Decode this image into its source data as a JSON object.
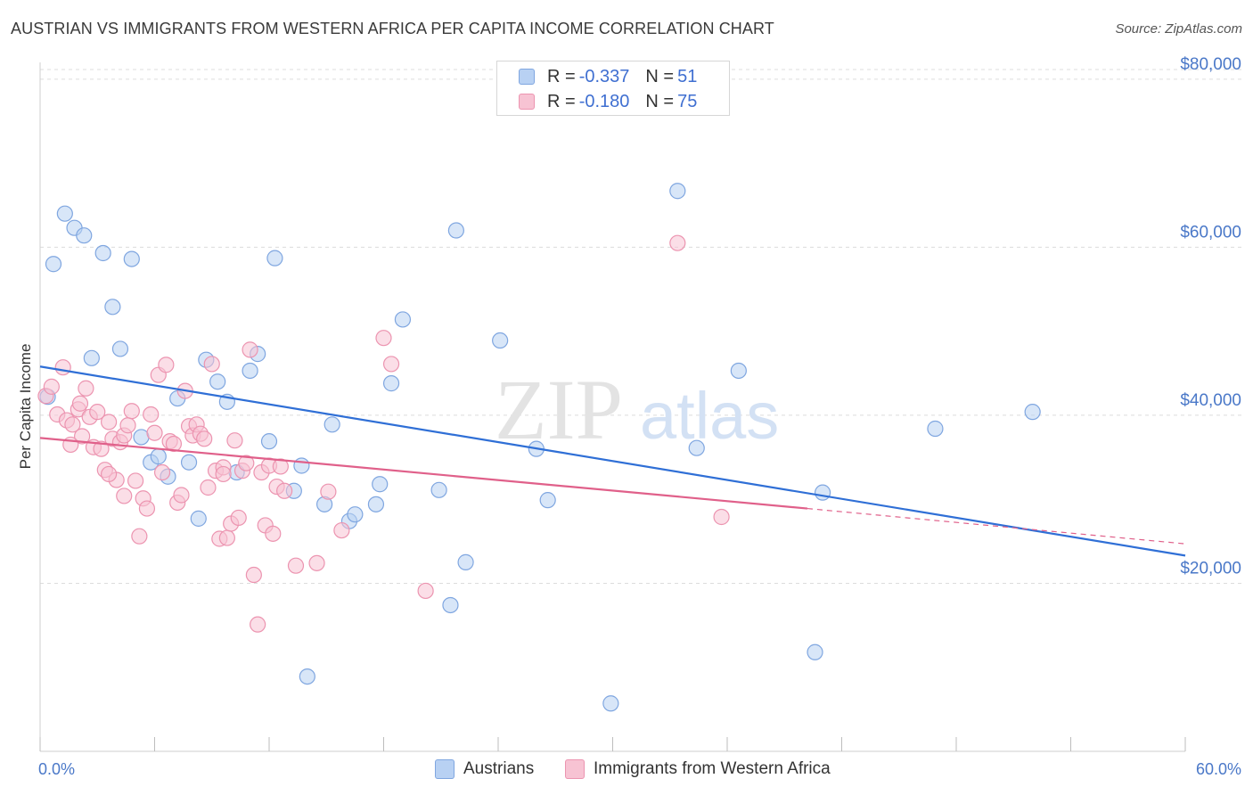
{
  "title": "AUSTRIAN VS IMMIGRANTS FROM WESTERN AFRICA PER CAPITA INCOME CORRELATION CHART",
  "source": "Source: ZipAtlas.com",
  "watermark": {
    "zip": "ZIP",
    "atlas": "atlas"
  },
  "legend_top": [
    {
      "r_label": "R =",
      "r_value": "-0.337",
      "n_label": "N =",
      "n_value": "51"
    },
    {
      "r_label": "R =",
      "r_value": "-0.180",
      "n_label": "N =",
      "n_value": "75"
    }
  ],
  "legend_bottom": [
    {
      "label": "Austrians"
    },
    {
      "label": "Immigrants from Western Africa"
    }
  ],
  "colors": {
    "blue_fill": "#b8d1f3",
    "blue_stroke": "#7fa6e0",
    "blue_line": "#2f6fd6",
    "pink_fill": "#f7c3d3",
    "pink_stroke": "#ec94b0",
    "pink_line": "#e0608a",
    "accent_text": "#4a78c8",
    "grid": "#dcdcdc"
  },
  "chart_data": {
    "type": "scatter",
    "ylabel": "Per Capita Income",
    "xlim": [
      0,
      60
    ],
    "ylim": [
      0,
      82000
    ],
    "x_tick_labels": [
      "0.0%",
      "60.0%"
    ],
    "y_ticks": [
      20000,
      40000,
      60000,
      80000
    ],
    "y_tick_labels": [
      "$20,000",
      "$40,000",
      "$60,000",
      "$80,000"
    ],
    "grid": "horizontal dashed",
    "series": [
      {
        "name": "Austrians",
        "color": "#b8d1f3",
        "trend": {
          "x": [
            0,
            60
          ],
          "y": [
            45800,
            23300
          ]
        },
        "points": [
          [
            0.4,
            42200
          ],
          [
            0.7,
            58000
          ],
          [
            1.3,
            64000
          ],
          [
            1.8,
            62300
          ],
          [
            2.3,
            61400
          ],
          [
            2.7,
            46800
          ],
          [
            3.3,
            59300
          ],
          [
            3.8,
            52900
          ],
          [
            4.2,
            47900
          ],
          [
            4.8,
            58600
          ],
          [
            5.3,
            37400
          ],
          [
            5.8,
            34400
          ],
          [
            6.2,
            35100
          ],
          [
            6.7,
            32700
          ],
          [
            7.2,
            42000
          ],
          [
            7.8,
            34400
          ],
          [
            8.3,
            27700
          ],
          [
            8.7,
            46600
          ],
          [
            9.3,
            44000
          ],
          [
            9.8,
            41600
          ],
          [
            10.3,
            33200
          ],
          [
            11.0,
            45300
          ],
          [
            11.4,
            47300
          ],
          [
            12.0,
            36900
          ],
          [
            12.3,
            58700
          ],
          [
            13.3,
            31000
          ],
          [
            13.7,
            34000
          ],
          [
            14.0,
            8900
          ],
          [
            14.9,
            29400
          ],
          [
            15.3,
            38900
          ],
          [
            16.2,
            27400
          ],
          [
            16.5,
            28200
          ],
          [
            17.6,
            29400
          ],
          [
            17.8,
            31800
          ],
          [
            18.4,
            43800
          ],
          [
            19.0,
            51400
          ],
          [
            20.9,
            31100
          ],
          [
            21.5,
            17400
          ],
          [
            21.8,
            62000
          ],
          [
            22.3,
            22500
          ],
          [
            24.1,
            48900
          ],
          [
            26.0,
            36000
          ],
          [
            26.6,
            29900
          ],
          [
            29.9,
            5700
          ],
          [
            33.4,
            66700
          ],
          [
            34.4,
            36100
          ],
          [
            36.6,
            45300
          ],
          [
            40.6,
            11800
          ],
          [
            41.0,
            30800
          ],
          [
            46.9,
            38400
          ],
          [
            52.0,
            40400
          ]
        ]
      },
      {
        "name": "Immigrants from Western Africa",
        "color": "#f7c3d3",
        "trend": {
          "x": [
            0,
            40.2
          ],
          "y": [
            37300,
            28900
          ]
        },
        "trend_dashed": {
          "x": [
            40.2,
            60
          ],
          "y": [
            28900,
            24700
          ]
        },
        "points": [
          [
            0.3,
            42300
          ],
          [
            0.6,
            43400
          ],
          [
            0.9,
            40100
          ],
          [
            1.2,
            45700
          ],
          [
            1.4,
            39400
          ],
          [
            1.7,
            38900
          ],
          [
            2.0,
            40700
          ],
          [
            2.2,
            37500
          ],
          [
            2.4,
            43200
          ],
          [
            2.6,
            39800
          ],
          [
            2.8,
            36200
          ],
          [
            3.0,
            40400
          ],
          [
            3.2,
            36000
          ],
          [
            3.4,
            33500
          ],
          [
            3.6,
            39200
          ],
          [
            3.8,
            37200
          ],
          [
            4.0,
            32300
          ],
          [
            4.2,
            36800
          ],
          [
            4.4,
            37600
          ],
          [
            4.6,
            38800
          ],
          [
            4.8,
            40500
          ],
          [
            5.0,
            32200
          ],
          [
            5.2,
            25600
          ],
          [
            5.4,
            30100
          ],
          [
            5.6,
            28900
          ],
          [
            5.8,
            40100
          ],
          [
            6.0,
            37900
          ],
          [
            6.2,
            44800
          ],
          [
            6.4,
            33200
          ],
          [
            6.6,
            46000
          ],
          [
            6.8,
            36900
          ],
          [
            7.0,
            36600
          ],
          [
            7.2,
            29600
          ],
          [
            7.4,
            30500
          ],
          [
            7.6,
            42900
          ],
          [
            7.8,
            38700
          ],
          [
            8.0,
            37600
          ],
          [
            8.2,
            38900
          ],
          [
            8.4,
            37800
          ],
          [
            8.6,
            37200
          ],
          [
            8.8,
            31400
          ],
          [
            9.0,
            46100
          ],
          [
            9.2,
            33400
          ],
          [
            9.4,
            25300
          ],
          [
            9.6,
            33800
          ],
          [
            9.8,
            25400
          ],
          [
            10.0,
            27100
          ],
          [
            10.2,
            37000
          ],
          [
            10.4,
            27800
          ],
          [
            10.6,
            33400
          ],
          [
            10.8,
            34300
          ],
          [
            11.0,
            47800
          ],
          [
            11.2,
            21000
          ],
          [
            11.4,
            15100
          ],
          [
            11.6,
            33200
          ],
          [
            11.8,
            26900
          ],
          [
            12.0,
            34000
          ],
          [
            12.2,
            25900
          ],
          [
            12.4,
            31500
          ],
          [
            12.6,
            33900
          ],
          [
            13.4,
            22100
          ],
          [
            14.5,
            22400
          ],
          [
            15.1,
            30900
          ],
          [
            15.8,
            26300
          ],
          [
            18.0,
            49200
          ],
          [
            18.4,
            46100
          ],
          [
            20.2,
            19100
          ],
          [
            33.4,
            60500
          ],
          [
            35.7,
            27900
          ],
          [
            2.1,
            41400
          ],
          [
            1.6,
            36500
          ],
          [
            3.6,
            33000
          ],
          [
            4.4,
            30400
          ],
          [
            9.6,
            33000
          ],
          [
            12.8,
            31000
          ]
        ]
      }
    ]
  }
}
